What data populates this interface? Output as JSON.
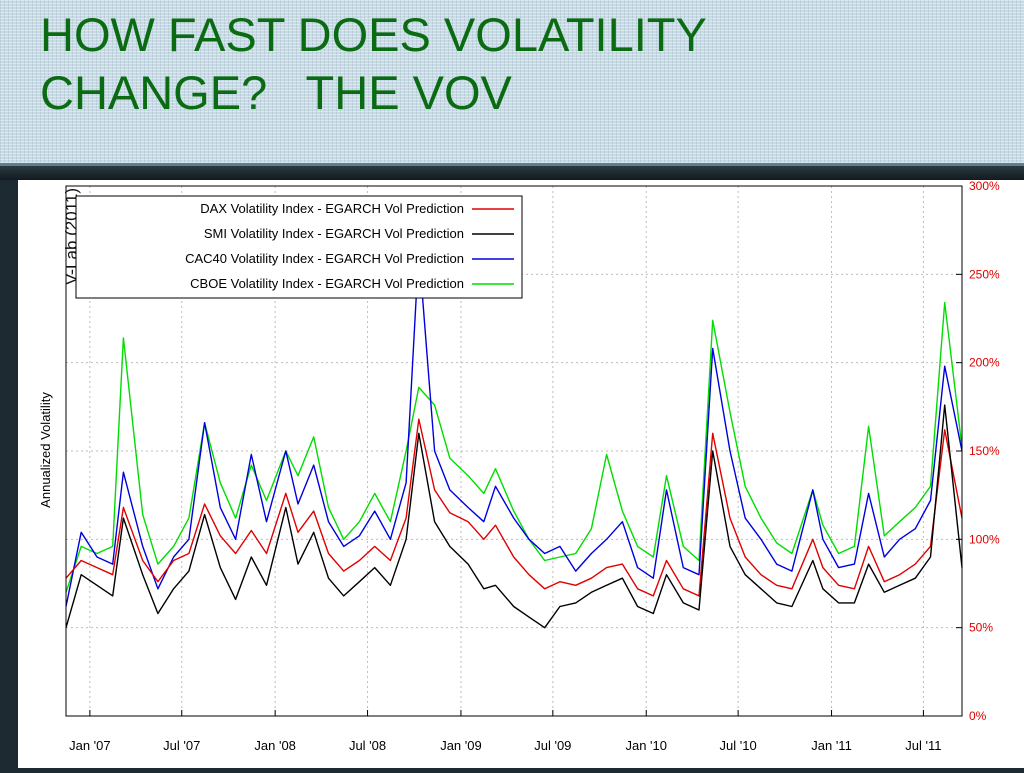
{
  "slide": {
    "title_line1": "HOW FAST DOES VOLATILITY",
    "title_line2": "CHANGE?   THE VOV"
  },
  "colors": {
    "title": "#0b6b12",
    "right_axis_labels": "#e00000",
    "dax": "#e00000",
    "smi": "#000000",
    "cac40": "#0000dd",
    "cboe": "#00dd00"
  },
  "chart_data": {
    "type": "line",
    "ylabel": "Annualized Volatility",
    "watermark": "V-Lab (2011)",
    "ylim": [
      0,
      300
    ],
    "y_ticks": [
      0,
      50,
      100,
      150,
      200,
      250,
      300
    ],
    "y_tick_labels": [
      "0%",
      "50%",
      "100%",
      "150%",
      "200%",
      "250%",
      "300%"
    ],
    "xlim": [
      "2006-11-15",
      "2011-09-15"
    ],
    "x_ticks": [
      "2007-01-01",
      "2007-07-01",
      "2008-01-01",
      "2008-07-01",
      "2009-01-01",
      "2009-07-01",
      "2010-01-01",
      "2010-07-01",
      "2011-01-01",
      "2011-07-01"
    ],
    "x_tick_labels": [
      "Jan '07",
      "Jul '07",
      "Jan '08",
      "Jul '08",
      "Jan '09",
      "Jul '09",
      "Jan '10",
      "Jul '10",
      "Jan '11",
      "Jul '11"
    ],
    "grid": true,
    "legend_position": "top-left",
    "series": [
      {
        "name": "DAX Volatility Index - EGARCH  Vol Prediction",
        "color": "#e00000",
        "points": [
          [
            "2006-11-15",
            78
          ],
          [
            "2006-12-15",
            88
          ],
          [
            "2007-01-15",
            84
          ],
          [
            "2007-02-15",
            80
          ],
          [
            "2007-03-08",
            118
          ],
          [
            "2007-04-15",
            88
          ],
          [
            "2007-05-15",
            76
          ],
          [
            "2007-06-15",
            88
          ],
          [
            "2007-07-15",
            92
          ],
          [
            "2007-08-15",
            120
          ],
          [
            "2007-09-15",
            102
          ],
          [
            "2007-10-15",
            92
          ],
          [
            "2007-11-15",
            105
          ],
          [
            "2007-12-15",
            92
          ],
          [
            "2008-01-22",
            126
          ],
          [
            "2008-02-15",
            104
          ],
          [
            "2008-03-17",
            116
          ],
          [
            "2008-04-15",
            92
          ],
          [
            "2008-05-15",
            82
          ],
          [
            "2008-06-15",
            88
          ],
          [
            "2008-07-15",
            96
          ],
          [
            "2008-08-15",
            88
          ],
          [
            "2008-09-15",
            112
          ],
          [
            "2008-10-10",
            168
          ],
          [
            "2008-11-10",
            128
          ],
          [
            "2008-12-10",
            115
          ],
          [
            "2009-01-15",
            110
          ],
          [
            "2009-02-15",
            100
          ],
          [
            "2009-03-10",
            108
          ],
          [
            "2009-04-15",
            90
          ],
          [
            "2009-05-15",
            80
          ],
          [
            "2009-06-15",
            72
          ],
          [
            "2009-07-15",
            76
          ],
          [
            "2009-08-15",
            74
          ],
          [
            "2009-09-15",
            78
          ],
          [
            "2009-10-15",
            84
          ],
          [
            "2009-11-15",
            86
          ],
          [
            "2009-12-15",
            72
          ],
          [
            "2010-01-15",
            68
          ],
          [
            "2010-02-10",
            88
          ],
          [
            "2010-03-15",
            72
          ],
          [
            "2010-04-15",
            68
          ],
          [
            "2010-05-12",
            160
          ],
          [
            "2010-06-15",
            112
          ],
          [
            "2010-07-15",
            90
          ],
          [
            "2010-08-15",
            80
          ],
          [
            "2010-09-15",
            74
          ],
          [
            "2010-10-15",
            72
          ],
          [
            "2010-11-25",
            100
          ],
          [
            "2010-12-15",
            84
          ],
          [
            "2011-01-15",
            74
          ],
          [
            "2011-02-15",
            72
          ],
          [
            "2011-03-15",
            96
          ],
          [
            "2011-04-15",
            76
          ],
          [
            "2011-05-15",
            80
          ],
          [
            "2011-06-15",
            86
          ],
          [
            "2011-07-15",
            96
          ],
          [
            "2011-08-12",
            162
          ],
          [
            "2011-09-15",
            112
          ]
        ]
      },
      {
        "name": "SMI Volatility Index - EGARCH  Vol Prediction",
        "color": "#000000",
        "points": [
          [
            "2006-11-15",
            50
          ],
          [
            "2006-12-15",
            80
          ],
          [
            "2007-01-15",
            74
          ],
          [
            "2007-02-15",
            68
          ],
          [
            "2007-03-08",
            112
          ],
          [
            "2007-04-15",
            80
          ],
          [
            "2007-05-15",
            58
          ],
          [
            "2007-06-15",
            72
          ],
          [
            "2007-07-15",
            82
          ],
          [
            "2007-08-15",
            114
          ],
          [
            "2007-09-15",
            84
          ],
          [
            "2007-10-15",
            66
          ],
          [
            "2007-11-15",
            90
          ],
          [
            "2007-12-15",
            74
          ],
          [
            "2008-01-22",
            118
          ],
          [
            "2008-02-15",
            86
          ],
          [
            "2008-03-17",
            104
          ],
          [
            "2008-04-15",
            78
          ],
          [
            "2008-05-15",
            68
          ],
          [
            "2008-06-15",
            76
          ],
          [
            "2008-07-15",
            84
          ],
          [
            "2008-08-15",
            74
          ],
          [
            "2008-09-15",
            100
          ],
          [
            "2008-10-10",
            160
          ],
          [
            "2008-11-10",
            110
          ],
          [
            "2008-12-10",
            96
          ],
          [
            "2009-01-15",
            86
          ],
          [
            "2009-02-15",
            72
          ],
          [
            "2009-03-10",
            74
          ],
          [
            "2009-04-15",
            62
          ],
          [
            "2009-05-15",
            56
          ],
          [
            "2009-06-15",
            50
          ],
          [
            "2009-07-15",
            62
          ],
          [
            "2009-08-15",
            64
          ],
          [
            "2009-09-15",
            70
          ],
          [
            "2009-10-15",
            74
          ],
          [
            "2009-11-15",
            78
          ],
          [
            "2009-12-15",
            62
          ],
          [
            "2010-01-15",
            58
          ],
          [
            "2010-02-10",
            80
          ],
          [
            "2010-03-15",
            64
          ],
          [
            "2010-04-15",
            60
          ],
          [
            "2010-05-12",
            150
          ],
          [
            "2010-06-15",
            96
          ],
          [
            "2010-07-15",
            80
          ],
          [
            "2010-08-15",
            72
          ],
          [
            "2010-09-15",
            64
          ],
          [
            "2010-10-15",
            62
          ],
          [
            "2010-11-25",
            88
          ],
          [
            "2010-12-15",
            72
          ],
          [
            "2011-01-15",
            64
          ],
          [
            "2011-02-15",
            64
          ],
          [
            "2011-03-15",
            86
          ],
          [
            "2011-04-15",
            70
          ],
          [
            "2011-05-15",
            74
          ],
          [
            "2011-06-15",
            78
          ],
          [
            "2011-07-15",
            90
          ],
          [
            "2011-08-12",
            176
          ],
          [
            "2011-09-15",
            84
          ]
        ]
      },
      {
        "name": "CAC40 Volatility Index - EGARCH  Vol Prediction",
        "color": "#0000dd",
        "points": [
          [
            "2006-11-15",
            62
          ],
          [
            "2006-12-15",
            104
          ],
          [
            "2007-01-15",
            90
          ],
          [
            "2007-02-15",
            86
          ],
          [
            "2007-03-08",
            138
          ],
          [
            "2007-04-15",
            96
          ],
          [
            "2007-05-15",
            72
          ],
          [
            "2007-06-15",
            90
          ],
          [
            "2007-07-15",
            100
          ],
          [
            "2007-08-15",
            166
          ],
          [
            "2007-09-15",
            118
          ],
          [
            "2007-10-15",
            100
          ],
          [
            "2007-11-15",
            148
          ],
          [
            "2007-12-15",
            110
          ],
          [
            "2008-01-22",
            150
          ],
          [
            "2008-02-15",
            120
          ],
          [
            "2008-03-17",
            142
          ],
          [
            "2008-04-15",
            110
          ],
          [
            "2008-05-15",
            96
          ],
          [
            "2008-06-15",
            102
          ],
          [
            "2008-07-15",
            116
          ],
          [
            "2008-08-15",
            100
          ],
          [
            "2008-09-15",
            132
          ],
          [
            "2008-10-10",
            264
          ],
          [
            "2008-11-10",
            150
          ],
          [
            "2008-12-10",
            128
          ],
          [
            "2009-01-15",
            118
          ],
          [
            "2009-02-15",
            110
          ],
          [
            "2009-03-10",
            130
          ],
          [
            "2009-04-15",
            112
          ],
          [
            "2009-05-15",
            100
          ],
          [
            "2009-06-15",
            92
          ],
          [
            "2009-07-15",
            96
          ],
          [
            "2009-08-15",
            82
          ],
          [
            "2009-09-15",
            92
          ],
          [
            "2009-10-15",
            100
          ],
          [
            "2009-11-15",
            110
          ],
          [
            "2009-12-15",
            84
          ],
          [
            "2010-01-15",
            78
          ],
          [
            "2010-02-10",
            128
          ],
          [
            "2010-03-15",
            84
          ],
          [
            "2010-04-15",
            80
          ],
          [
            "2010-05-12",
            208
          ],
          [
            "2010-06-15",
            150
          ],
          [
            "2010-07-15",
            112
          ],
          [
            "2010-08-15",
            100
          ],
          [
            "2010-09-15",
            86
          ],
          [
            "2010-10-15",
            82
          ],
          [
            "2010-11-25",
            128
          ],
          [
            "2010-12-15",
            100
          ],
          [
            "2011-01-15",
            84
          ],
          [
            "2011-02-15",
            86
          ],
          [
            "2011-03-15",
            126
          ],
          [
            "2011-04-15",
            90
          ],
          [
            "2011-05-15",
            100
          ],
          [
            "2011-06-15",
            106
          ],
          [
            "2011-07-15",
            122
          ],
          [
            "2011-08-12",
            198
          ],
          [
            "2011-09-15",
            150
          ]
        ]
      },
      {
        "name": "CBOE Volatility Index - EGARCH  Vol Prediction",
        "color": "#00dd00",
        "points": [
          [
            "2006-11-15",
            70
          ],
          [
            "2006-12-15",
            96
          ],
          [
            "2007-01-15",
            92
          ],
          [
            "2007-02-15",
            96
          ],
          [
            "2007-03-08",
            214
          ],
          [
            "2007-04-15",
            114
          ],
          [
            "2007-05-15",
            86
          ],
          [
            "2007-06-15",
            96
          ],
          [
            "2007-07-15",
            112
          ],
          [
            "2007-08-15",
            166
          ],
          [
            "2007-09-15",
            132
          ],
          [
            "2007-10-15",
            112
          ],
          [
            "2007-11-15",
            142
          ],
          [
            "2007-12-15",
            122
          ],
          [
            "2008-01-22",
            150
          ],
          [
            "2008-02-15",
            136
          ],
          [
            "2008-03-17",
            158
          ],
          [
            "2008-04-15",
            118
          ],
          [
            "2008-05-15",
            100
          ],
          [
            "2008-06-15",
            110
          ],
          [
            "2008-07-15",
            126
          ],
          [
            "2008-08-15",
            110
          ],
          [
            "2008-09-15",
            150
          ],
          [
            "2008-10-10",
            186
          ],
          [
            "2008-11-10",
            176
          ],
          [
            "2008-12-10",
            146
          ],
          [
            "2009-01-15",
            136
          ],
          [
            "2009-02-15",
            126
          ],
          [
            "2009-03-10",
            140
          ],
          [
            "2009-04-15",
            116
          ],
          [
            "2009-05-15",
            100
          ],
          [
            "2009-06-15",
            88
          ],
          [
            "2009-07-15",
            90
          ],
          [
            "2009-08-15",
            92
          ],
          [
            "2009-09-15",
            106
          ],
          [
            "2009-10-15",
            148
          ],
          [
            "2009-11-15",
            116
          ],
          [
            "2009-12-15",
            96
          ],
          [
            "2010-01-15",
            90
          ],
          [
            "2010-02-10",
            136
          ],
          [
            "2010-03-15",
            96
          ],
          [
            "2010-04-15",
            88
          ],
          [
            "2010-05-12",
            224
          ],
          [
            "2010-06-15",
            172
          ],
          [
            "2010-07-15",
            130
          ],
          [
            "2010-08-15",
            112
          ],
          [
            "2010-09-15",
            98
          ],
          [
            "2010-10-15",
            92
          ],
          [
            "2010-11-25",
            128
          ],
          [
            "2010-12-15",
            108
          ],
          [
            "2011-01-15",
            92
          ],
          [
            "2011-02-15",
            96
          ],
          [
            "2011-03-15",
            164
          ],
          [
            "2011-04-15",
            102
          ],
          [
            "2011-05-15",
            110
          ],
          [
            "2011-06-15",
            118
          ],
          [
            "2011-07-15",
            130
          ],
          [
            "2011-08-12",
            234
          ],
          [
            "2011-09-15",
            152
          ]
        ]
      }
    ]
  }
}
